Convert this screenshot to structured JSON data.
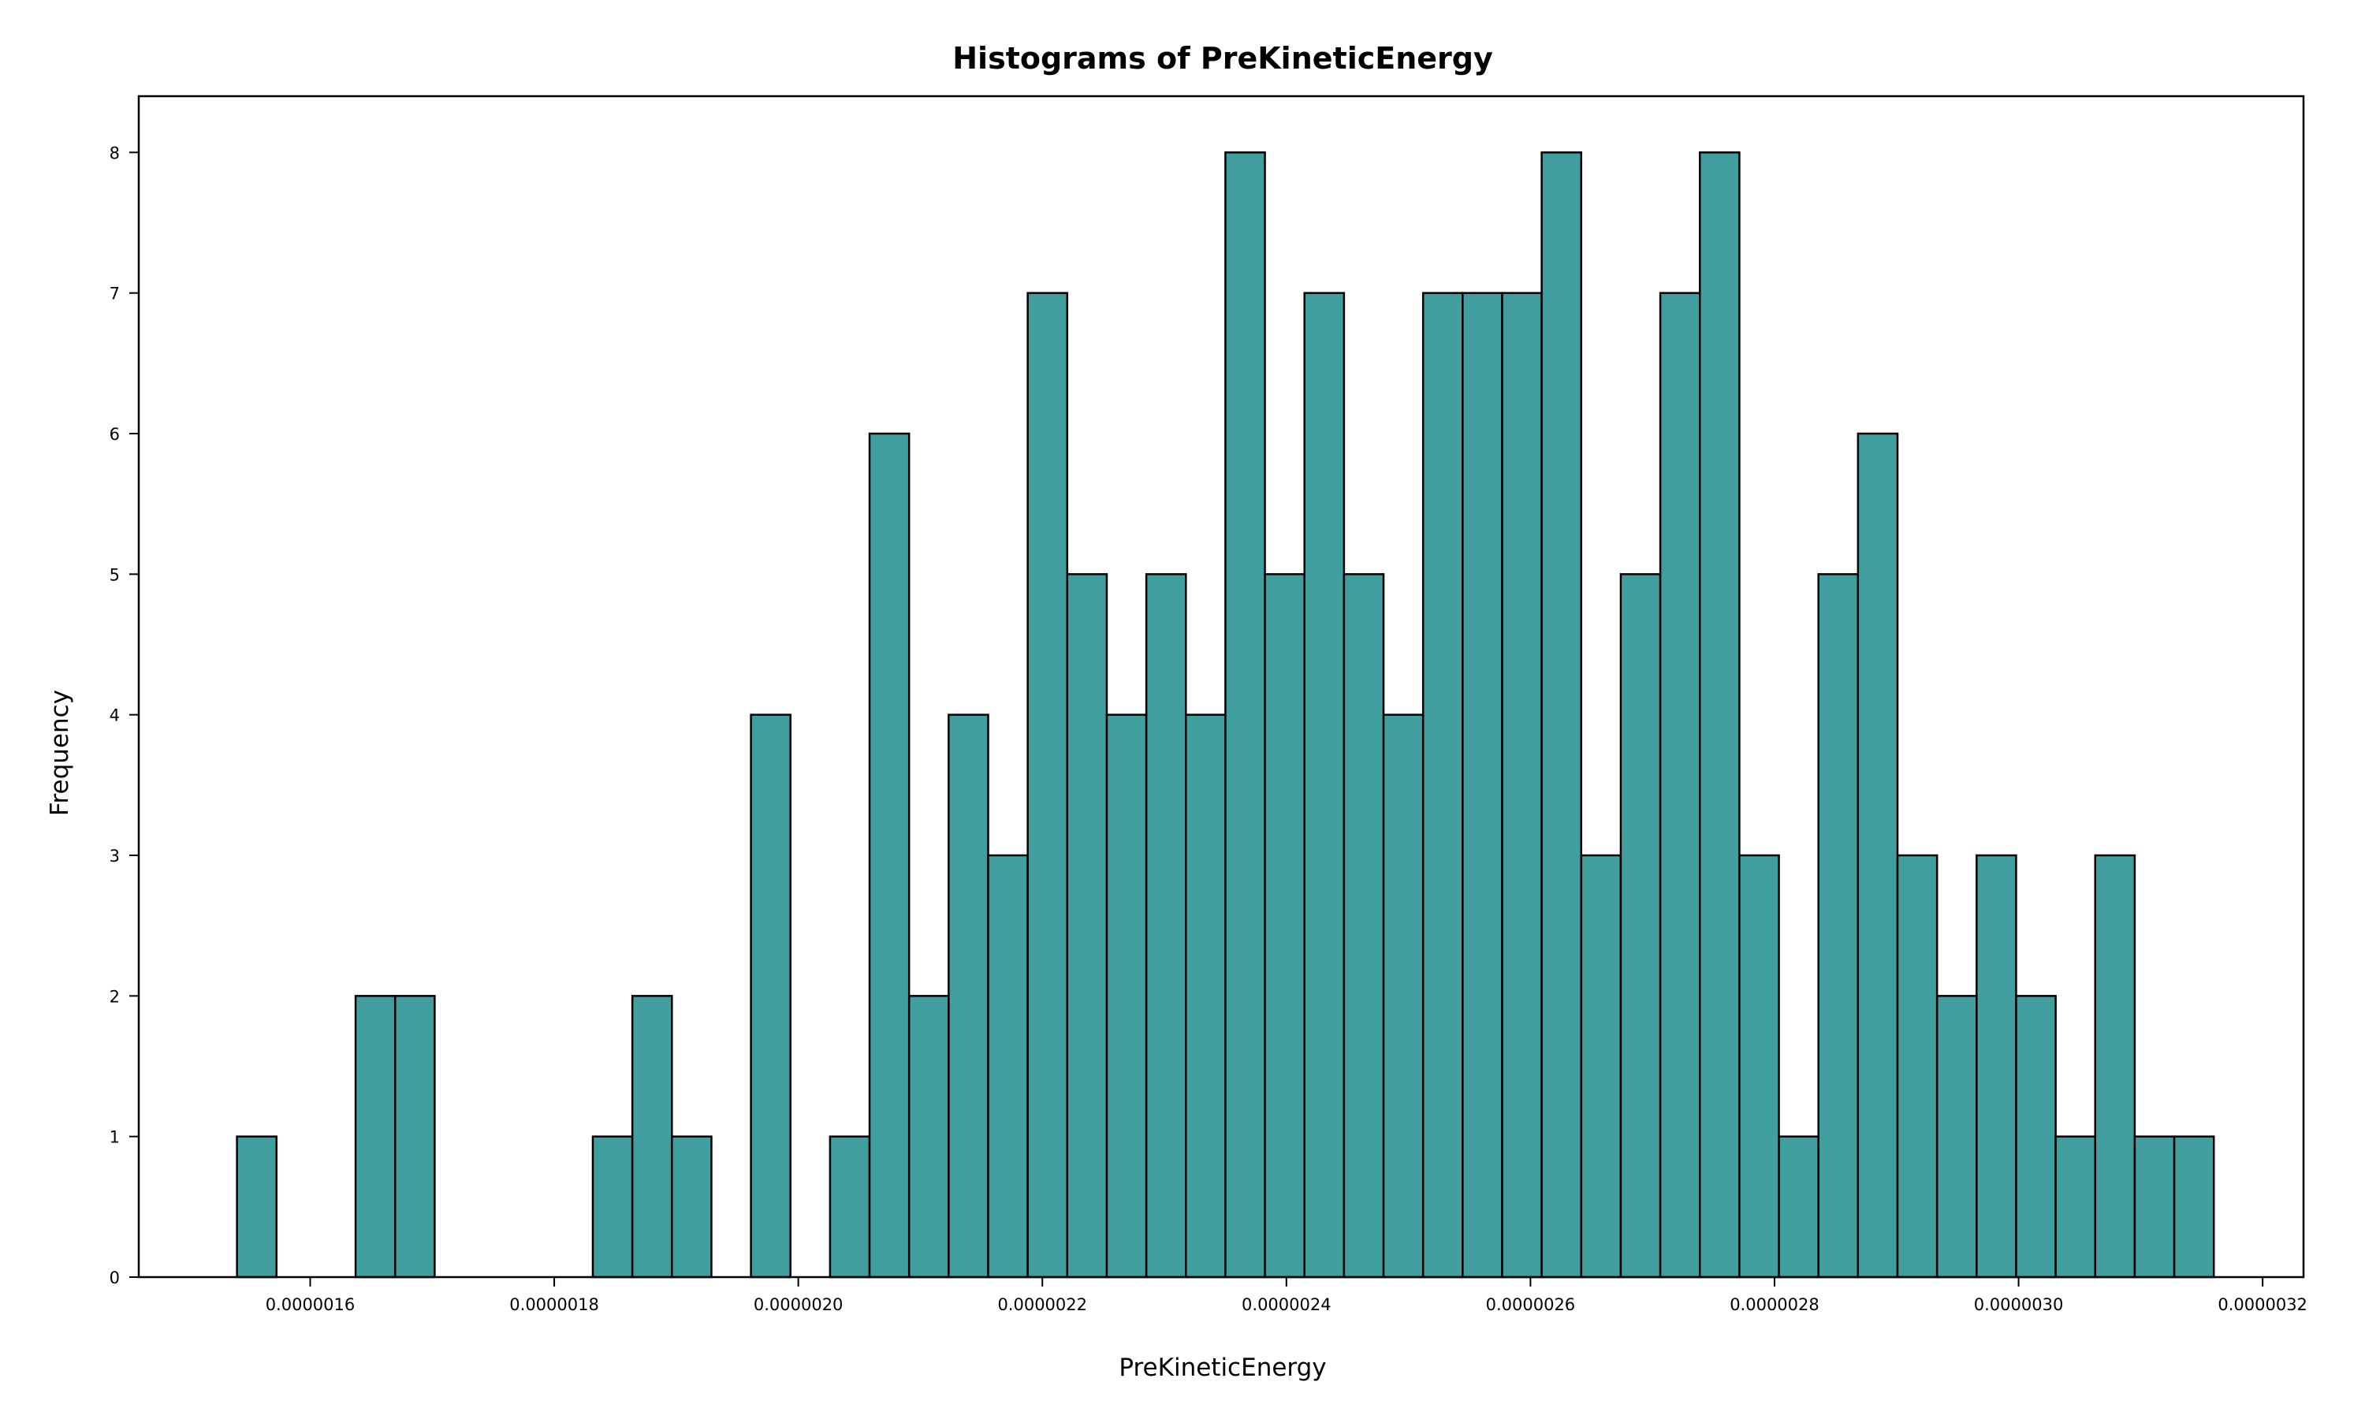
{
  "chart_data": {
    "type": "bar",
    "title": "Histograms of PreKineticEnergy",
    "xlabel": "PreKineticEnergy",
    "ylabel": "Frequency",
    "bar_color": "#409f9e",
    "edge_color": "#000000",
    "bin_start": 1.54e-06,
    "bin_width": 3.24e-08,
    "values": [
      1,
      0,
      0,
      2,
      2,
      0,
      0,
      0,
      0,
      1,
      2,
      1,
      0,
      4,
      0,
      1,
      6,
      2,
      4,
      3,
      7,
      5,
      4,
      5,
      4,
      8,
      5,
      7,
      5,
      4,
      7,
      7,
      7,
      8,
      3,
      5,
      7,
      8,
      3,
      1,
      5,
      6,
      3,
      2,
      3,
      2,
      1,
      3,
      1,
      1
    ],
    "xlim": [
      1.4595e-06,
      3.2335e-06
    ],
    "ylim": [
      0,
      8.4
    ],
    "x_ticks": [
      1.6e-06,
      1.8e-06,
      2e-06,
      2.2e-06,
      2.4e-06,
      2.6e-06,
      2.8e-06,
      3e-06,
      3.2e-06
    ],
    "x_tick_labels": [
      "0.0000016",
      "0.0000018",
      "0.0000020",
      "0.0000022",
      "0.0000024",
      "0.0000026",
      "0.0000028",
      "0.0000030",
      "0.0000032"
    ],
    "y_ticks": [
      0,
      1,
      2,
      3,
      4,
      5,
      6,
      7,
      8
    ],
    "y_tick_labels": [
      "0",
      "1",
      "2",
      "3",
      "4",
      "5",
      "6",
      "7",
      "8"
    ],
    "grid": false,
    "legend": "none"
  }
}
